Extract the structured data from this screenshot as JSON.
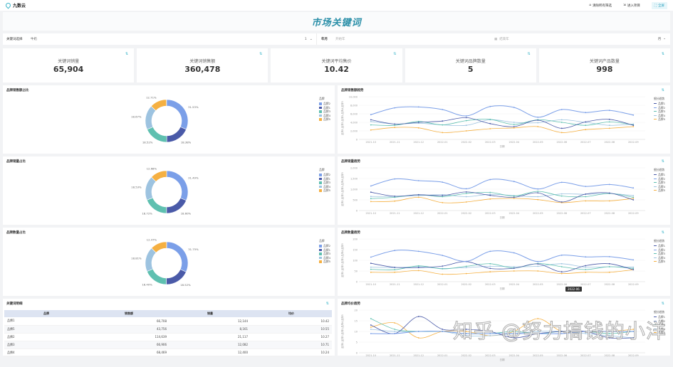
{
  "app": {
    "logo_text": "九数云"
  },
  "topbar": {
    "clear_filters": "清除所有筛选",
    "enter_project": "进入项目",
    "fullscreen": "全屏"
  },
  "banner": {
    "title": "市场关键词"
  },
  "filters": {
    "keyword_label": "关键词选择",
    "keyword_value": "牛奶",
    "keyword_count": "1",
    "month_label": "年月",
    "start_placeholder": "开始年",
    "end_placeholder": "结束年",
    "granularity": "月"
  },
  "kpis": [
    {
      "label": "关键词销量",
      "value": "65,904"
    },
    {
      "label": "关键词销售额",
      "value": "360,478"
    },
    {
      "label": "关键词平均售价",
      "value": "10.42"
    },
    {
      "label": "关键词品牌数量",
      "value": "5"
    },
    {
      "label": "关键词产品数量",
      "value": "998"
    }
  ],
  "colors": {
    "brand2": "#7b9fe8",
    "brand1": "#4a5aa8",
    "brand3": "#5fc0b0",
    "brand4": "#9dc3e0",
    "brand5": "#f5b042",
    "accent": "#3bb5c9"
  },
  "pies": [
    {
      "title": "品牌销售额占比",
      "legend_title": "品牌",
      "slices": [
        {
          "name": "品牌2",
          "pct": 31.53,
          "label": "31.53%"
        },
        {
          "name": "品牌1",
          "pct": 18.38,
          "label": "18.38%"
        },
        {
          "name": "品牌3",
          "pct": 18.52,
          "label": "18.52%"
        },
        {
          "name": "品牌4",
          "pct": 18.67,
          "label": "18.67%"
        },
        {
          "name": "品牌5",
          "pct": 12.71,
          "label": "12.71%"
        }
      ]
    },
    {
      "title": "品牌销量占比",
      "legend_title": "品牌",
      "slices": [
        {
          "name": "品牌2",
          "pct": 31.49,
          "label": "31.49%"
        },
        {
          "name": "品牌1",
          "pct": 18.6,
          "label": "18.60%"
        },
        {
          "name": "品牌3",
          "pct": 18.72,
          "label": "18.72%"
        },
        {
          "name": "品牌4",
          "pct": 18.53,
          "label": "18.53%"
        },
        {
          "name": "品牌5",
          "pct": 12.68,
          "label": "12.68%"
        }
      ]
    },
    {
      "title": "品牌数量占比",
      "legend_title": "品牌",
      "slices": [
        {
          "name": "品牌2",
          "pct": 31.75,
          "label": "31.75%"
        },
        {
          "name": "品牌1",
          "pct": 18.52,
          "label": "18.52%"
        },
        {
          "name": "品牌3",
          "pct": 18.4,
          "label": "18.40%"
        },
        {
          "name": "品牌4",
          "pct": 18.81,
          "label": "18.81%"
        },
        {
          "name": "品牌5",
          "pct": 12.47,
          "label": "12.47%"
        }
      ]
    }
  ],
  "lines": [
    {
      "title": "品牌销售额趋势",
      "legend_title": "细分趋势",
      "xlabel": "日期",
      "ylabel": "品牌1,品牌2,品牌3,品牌4,品牌5",
      "yticks": [
        "0",
        "2,000",
        "4,000",
        "6,000",
        "8,000",
        "10,000"
      ],
      "ymax": 10000
    },
    {
      "title": "品牌销量趋势",
      "legend_title": "细分趋势",
      "xlabel": "日期",
      "ylabel": "品牌1,品牌2,品牌3,品牌4,品牌5",
      "yticks": [
        "0",
        "500",
        "1,000",
        "1,500",
        "2,000"
      ],
      "ymax": 2000
    },
    {
      "title": "品牌数量趋势",
      "legend_title": "细分趋势",
      "xlabel": "日期",
      "ylabel": "品牌1,品牌2,品牌3,品牌4,品牌5",
      "yticks": [
        "0",
        "50",
        "100",
        "150",
        "200"
      ],
      "ymax": 200,
      "tooltip": "2022-06"
    },
    {
      "title": "品牌均价趋势",
      "legend_title": "细分趋势",
      "xlabel": "日期",
      "ylabel": "品牌1,品牌2,品牌3,品牌4,品牌5",
      "yticks": [
        "0",
        "5",
        "10",
        "15",
        "20"
      ],
      "ymax": 20
    }
  ],
  "table": {
    "title": "关键词明细",
    "headers": [
      "品牌",
      "销售额",
      "销量",
      "均价"
    ],
    "rows": [
      [
        "品牌1",
        "66,708",
        "12,144",
        "10.42"
      ],
      [
        "品牌5",
        "43,756",
        "8,161",
        "10.55"
      ],
      [
        "品牌2",
        "114,639",
        "21,117",
        "10.27"
      ],
      [
        "品牌3",
        "66,906",
        "12,082",
        "10.71"
      ],
      [
        "品牌4",
        "68,469",
        "12,400",
        "10.24"
      ]
    ]
  },
  "watermark": "知乎 @努力搞钱的小洋",
  "chart_data": [
    {
      "type": "pie",
      "title": "品牌销售额占比",
      "categories": [
        "品牌2",
        "品牌1",
        "品牌3",
        "品牌4",
        "品牌5"
      ],
      "values": [
        31.53,
        18.38,
        18.52,
        18.67,
        12.71
      ]
    },
    {
      "type": "line",
      "title": "品牌销售额趋势",
      "xlabel": "日期",
      "ylim": [
        0,
        10000
      ],
      "x": [
        "2021-10",
        "2021-11",
        "2021-12",
        "2022-01",
        "2022-02",
        "2022-03",
        "2022-04",
        "2022-05",
        "2022-06",
        "2022-07",
        "2022-08",
        "2022-09"
      ],
      "series": [
        {
          "name": "品牌2",
          "values": [
            5800,
            7400,
            7600,
            7000,
            5500,
            7700,
            7500,
            5200,
            7000,
            6300,
            6800,
            5700
          ]
        },
        {
          "name": "品牌1",
          "values": [
            4600,
            3600,
            4000,
            4300,
            5100,
            3700,
            3000,
            4500,
            2600,
            4100,
            4700,
            3300
          ]
        },
        {
          "name": "品牌3",
          "values": [
            3400,
            3300,
            4200,
            3400,
            4400,
            4700,
            3500,
            4600,
            4000,
            3300,
            4100,
            3400
          ]
        },
        {
          "name": "品牌4",
          "values": [
            4200,
            3600,
            3800,
            3400,
            3300,
            4600,
            4000,
            3900,
            4600,
            4000,
            3300,
            3600
          ]
        },
        {
          "name": "品牌5",
          "values": [
            2200,
            2800,
            2700,
            1600,
            2000,
            2500,
            2700,
            3000,
            1600,
            2300,
            2600,
            3000
          ]
        }
      ]
    },
    {
      "type": "pie",
      "title": "品牌销量占比",
      "categories": [
        "品牌2",
        "品牌1",
        "品牌3",
        "品牌4",
        "品牌5"
      ],
      "values": [
        31.49,
        18.6,
        18.72,
        18.53,
        12.68
      ]
    },
    {
      "type": "line",
      "title": "品牌销量趋势",
      "xlabel": "日期",
      "ylim": [
        0,
        2000
      ],
      "x": [
        "2021-10",
        "2021-11",
        "2021-12",
        "2022-01",
        "2022-02",
        "2022-03",
        "2022-04",
        "2022-05",
        "2022-06",
        "2022-07",
        "2022-08",
        "2022-09"
      ],
      "series": [
        {
          "name": "品牌2",
          "values": [
            1150,
            1480,
            1400,
            1330,
            1020,
            1450,
            1360,
            1010,
            1320,
            1130,
            1220,
            1060
          ]
        },
        {
          "name": "品牌1",
          "values": [
            860,
            670,
            740,
            700,
            870,
            710,
            620,
            830,
            400,
            770,
            820,
            500
          ]
        },
        {
          "name": "品牌3",
          "values": [
            560,
            620,
            740,
            650,
            800,
            850,
            680,
            900,
            680,
            650,
            800,
            620
          ]
        },
        {
          "name": "品牌4",
          "values": [
            660,
            660,
            700,
            740,
            650,
            760,
            700,
            650,
            780,
            760,
            800,
            700
          ]
        },
        {
          "name": "品牌5",
          "values": [
            420,
            440,
            620,
            370,
            400,
            540,
            570,
            510,
            370,
            450,
            450,
            570
          ]
        }
      ]
    },
    {
      "type": "pie",
      "title": "品牌数量占比",
      "categories": [
        "品牌2",
        "品牌1",
        "品牌3",
        "品牌4",
        "品牌5"
      ],
      "values": [
        31.75,
        18.52,
        18.4,
        18.81,
        12.47
      ]
    },
    {
      "type": "line",
      "title": "品牌数量趋势",
      "xlabel": "日期",
      "ylim": [
        0,
        200
      ],
      "x": [
        "2021-10",
        "2021-11",
        "2021-12",
        "2022-01",
        "2022-02",
        "2022-03",
        "2022-04",
        "2022-05",
        "2022-06",
        "2022-07",
        "2022-08",
        "2022-09"
      ],
      "series": [
        {
          "name": "品牌2",
          "values": [
            115,
            146,
            142,
            123,
            95,
            142,
            135,
            94,
            124,
            116,
            117,
            102
          ]
        },
        {
          "name": "品牌1",
          "values": [
            86,
            67,
            66,
            73,
            94,
            62,
            63,
            83,
            46,
            75,
            84,
            56
          ]
        },
        {
          "name": "品牌3",
          "values": [
            58,
            56,
            74,
            60,
            72,
            84,
            64,
            85,
            70,
            57,
            70,
            62
          ]
        },
        {
          "name": "品牌4",
          "values": [
            68,
            66,
            70,
            62,
            66,
            72,
            70,
            72,
            84,
            68,
            70,
            68
          ]
        },
        {
          "name": "品牌5",
          "values": [
            44,
            44,
            52,
            35,
            38,
            46,
            50,
            50,
            38,
            44,
            44,
            56
          ]
        }
      ]
    },
    {
      "type": "line",
      "title": "品牌均价趋势",
      "xlabel": "日期",
      "ylim": [
        0,
        20
      ],
      "x": [
        "2021-10",
        "2021-11",
        "2021-12",
        "2022-01",
        "2022-02",
        "2022-03",
        "2022-04",
        "2022-05",
        "2022-06",
        "2022-07",
        "2022-08",
        "2022-09"
      ],
      "series": [
        {
          "name": "品牌2",
          "values": [
            9,
            9,
            10,
            10,
            9,
            9,
            9,
            9,
            9,
            10,
            10,
            10
          ]
        },
        {
          "name": "品牌1",
          "values": [
            13,
            9,
            17,
            11,
            11,
            10,
            7,
            9,
            10,
            10,
            7,
            7
          ]
        },
        {
          "name": "品牌3",
          "values": [
            16,
            11,
            10,
            10,
            9,
            9,
            10,
            9,
            10,
            10,
            9,
            10
          ]
        },
        {
          "name": "品牌4",
          "values": [
            11,
            10,
            10,
            10,
            8,
            8,
            9,
            10,
            10,
            9,
            8,
            7
          ]
        },
        {
          "name": "品牌5",
          "values": [
            12,
            14,
            7,
            10,
            10,
            8,
            10,
            16,
            10,
            10,
            10,
            11
          ]
        }
      ]
    }
  ]
}
